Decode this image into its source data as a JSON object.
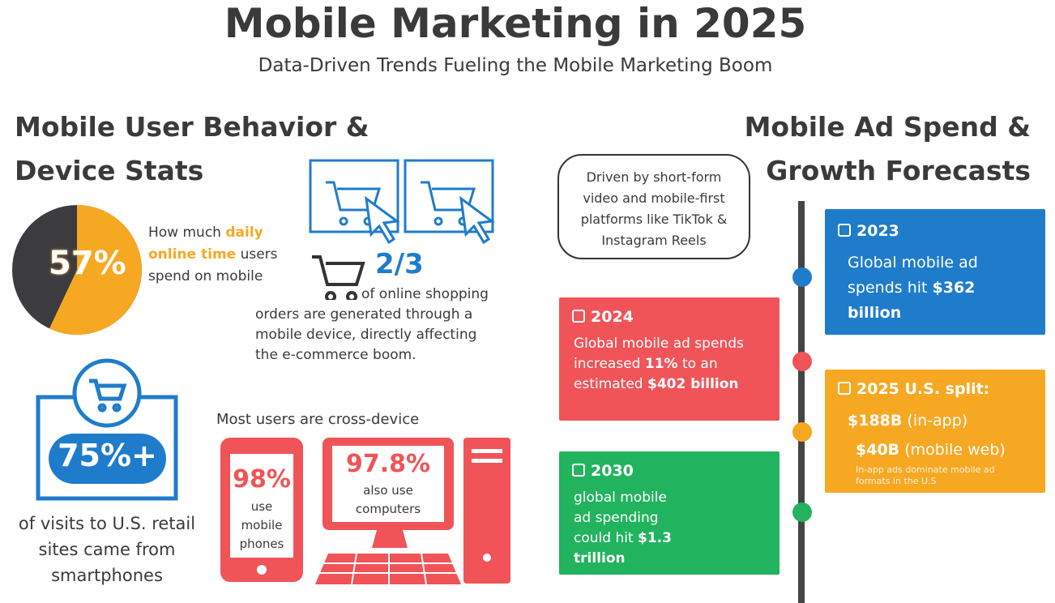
{
  "header": {
    "title": "Mobile Marketing in 2025",
    "subtitle": "Data-Driven Trends Fueling the Mobile Marketing Boom"
  },
  "behavior": {
    "heading": "Mobile User Behavior & Device Stats",
    "pie": {
      "value": 57,
      "label": "57%",
      "colors": [
        "#f7a823",
        "#3c3c40"
      ],
      "caption": [
        "How much ",
        "daily online time",
        " users spend on mobile"
      ]
    },
    "shopping": {
      "stat": "2/3",
      "text": "of online shopping orders are generated through a mobile device, directly affecting the e-commerce boom."
    },
    "retail": {
      "stat": "75%+",
      "text": "of visits to U.S. retail sites came from smartphones"
    },
    "cross_device": {
      "heading": "Most users are cross-device",
      "phones": {
        "stat": "98%",
        "text": "use mobile phones"
      },
      "computers": {
        "stat": "97.8%",
        "text": "also use computers"
      }
    }
  },
  "ad_spend": {
    "heading": "Mobile Ad Spend & Growth Forecasts",
    "note": "Driven by short-form video and mobile-first platforms like TikTok & Instagram Reels",
    "timeline": [
      {
        "year": "2023",
        "text": [
          "Global mobile ad spends hit ",
          "$362 billion"
        ]
      },
      {
        "year": "2024",
        "text": [
          "Global mobile ad spends increased ",
          "11%",
          " to an estimated ",
          "$402 billion"
        ]
      },
      {
        "year": "2025 U.S. split:",
        "rows": [
          {
            "amount": "$188B",
            "label": "(in-app)"
          },
          {
            "amount": "$40B",
            "label": "(mobile web)"
          }
        ],
        "note": "In-app ads dominate mobile ad formats in the U.S"
      },
      {
        "year": "2030",
        "text": [
          "global mobile ad spending could hit ",
          "$1.3 trillion"
        ]
      }
    ]
  }
}
